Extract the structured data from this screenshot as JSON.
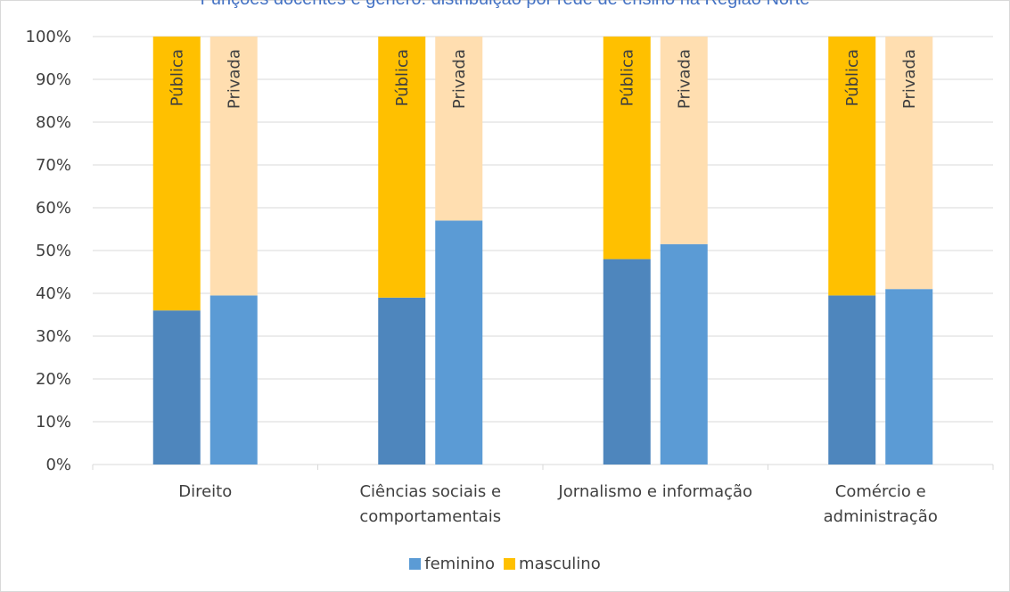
{
  "chart_data": {
    "type": "bar",
    "title": "Funções docentes e género: distribuição por rede de ensino na Região Norte",
    "categories": [
      "Direito",
      "Ciências sociais e comportamentais",
      "Jornalismo e informação",
      "Comércio e administração"
    ],
    "category_lines": [
      [
        "Direito"
      ],
      [
        "Ciências sociais e",
        "comportamentais"
      ],
      [
        "Jornalismo e informação"
      ],
      [
        "Comércio e",
        "administração"
      ]
    ],
    "bar_labels": [
      "Pública",
      "Privada"
    ],
    "series": [
      {
        "name": "feminino",
        "values": {
          "Pública": [
            36,
            39,
            48,
            39.5
          ],
          "Privada": [
            39.5,
            57,
            51.5,
            41
          ]
        }
      },
      {
        "name": "masculino",
        "values": {
          "Pública": [
            64,
            61,
            52,
            60.5
          ],
          "Privada": [
            60.5,
            43,
            48.5,
            59
          ]
        }
      }
    ],
    "yticks": [
      "0%",
      "10%",
      "20%",
      "30%",
      "40%",
      "50%",
      "60%",
      "70%",
      "80%",
      "90%",
      "100%"
    ],
    "ylim": [
      0,
      100
    ],
    "grid": true,
    "legend_position": "bottom",
    "colors": {
      "feminino_publica": "#4e86bd",
      "feminino_privada": "#5b9bd5",
      "masculino_publica": "#ffc000",
      "masculino_privada": "#ffdeb0",
      "grid": "#d9d9d9",
      "axis_text": "#404040"
    }
  },
  "legend": {
    "items": [
      {
        "label": "feminino",
        "color": "#5b9bd5"
      },
      {
        "label": "masculino",
        "color": "#ffc000"
      }
    ]
  }
}
